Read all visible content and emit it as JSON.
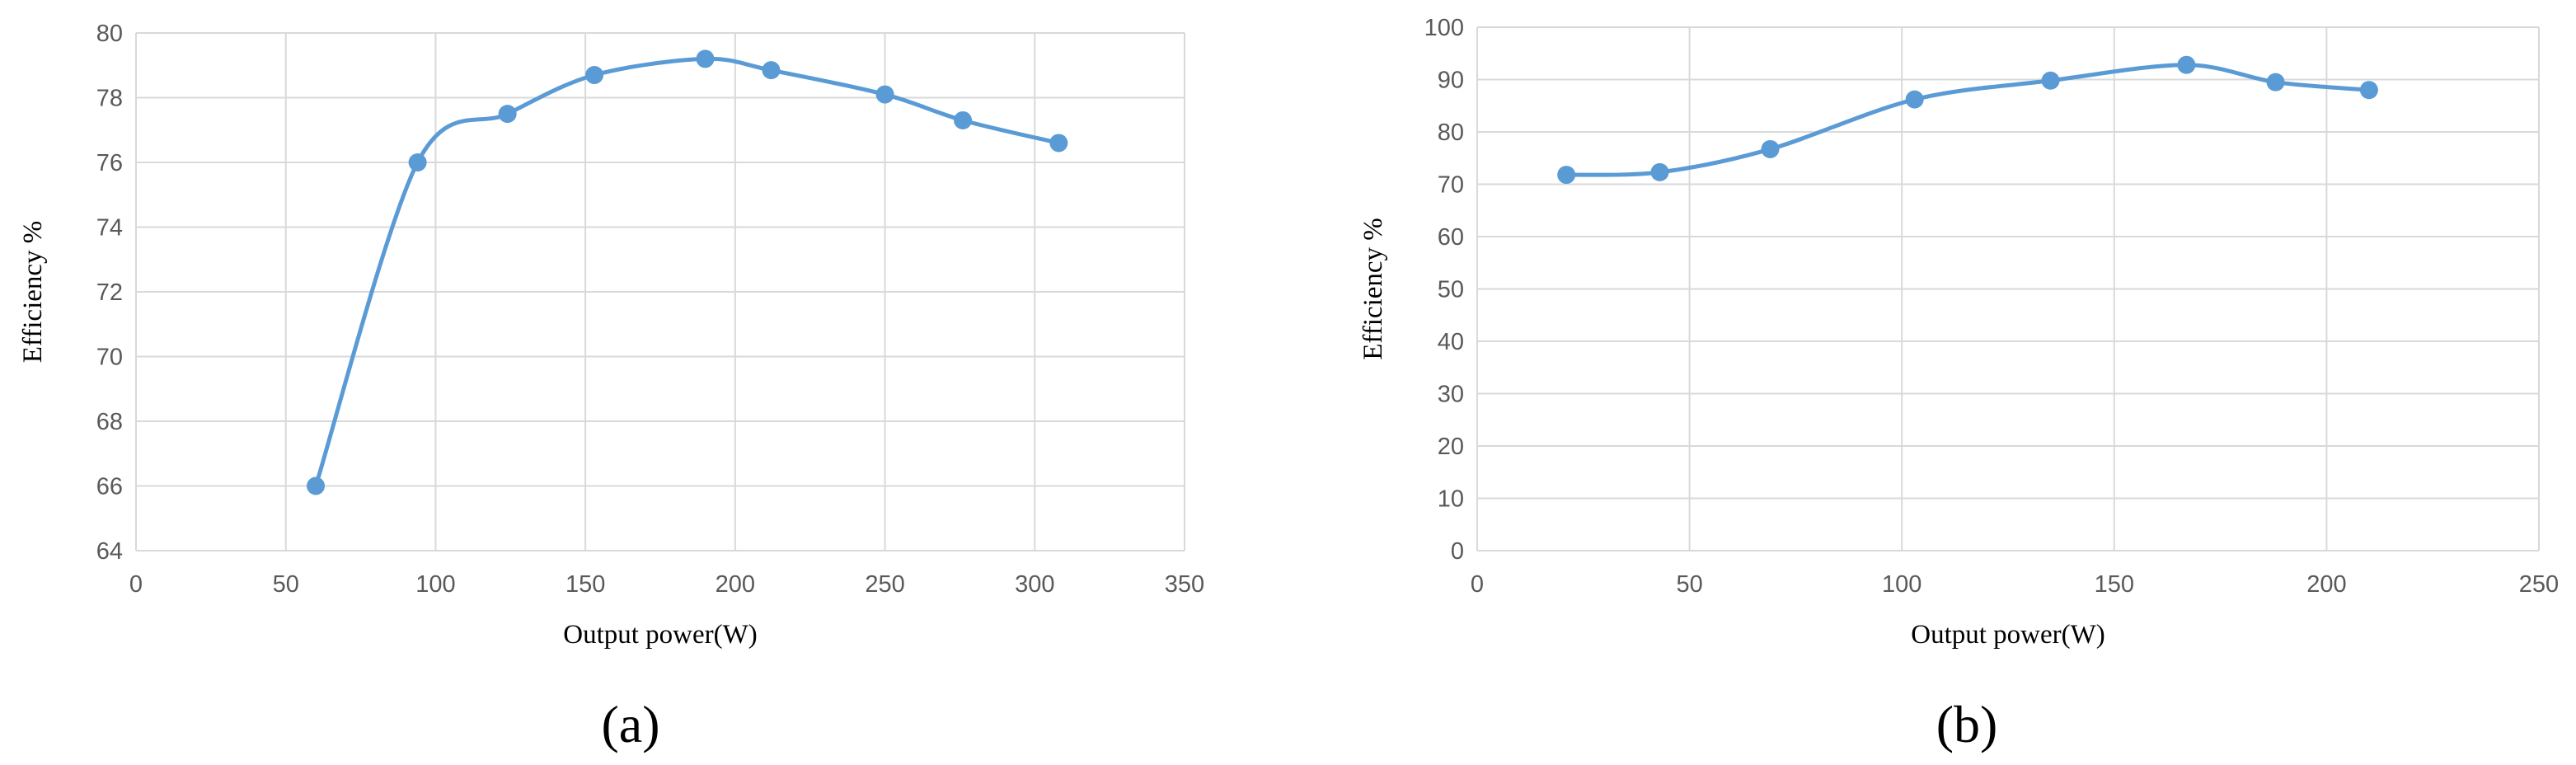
{
  "colors": {
    "series": "#5B9BD5",
    "grid": "#D9D9D9",
    "tick_text": "#595959"
  },
  "chart_data": [
    {
      "type": "line",
      "smooth": true,
      "markers": true,
      "panel_label": "(a)",
      "title": "",
      "xlabel": "Output power(W)",
      "ylabel": "Efficiency %",
      "xlim": [
        0,
        350
      ],
      "ylim": [
        64,
        80
      ],
      "xticks": [
        0,
        50,
        100,
        150,
        200,
        250,
        300,
        350
      ],
      "yticks": [
        64,
        66,
        68,
        70,
        72,
        74,
        76,
        78,
        80
      ],
      "grid": true,
      "legend": "none",
      "series": [
        {
          "x": [
            60,
            94,
            124,
            153,
            190,
            212,
            250,
            276,
            308
          ],
          "y": [
            66.0,
            76.0,
            77.5,
            78.7,
            79.2,
            78.85,
            78.1,
            77.3,
            76.6
          ]
        }
      ]
    },
    {
      "type": "line",
      "smooth": true,
      "markers": true,
      "panel_label": "(b)",
      "title": "",
      "xlabel": "Output power(W)",
      "ylabel": "Efficiency %",
      "xlim": [
        0,
        250
      ],
      "ylim": [
        0,
        100
      ],
      "xticks": [
        0,
        50,
        100,
        150,
        200,
        250
      ],
      "yticks": [
        0,
        10,
        20,
        30,
        40,
        50,
        60,
        70,
        80,
        90,
        100
      ],
      "grid": true,
      "legend": "none",
      "series": [
        {
          "x": [
            21,
            43,
            69,
            103,
            135,
            167,
            188,
            210
          ],
          "y": [
            71.8,
            72.3,
            76.7,
            86.2,
            89.8,
            92.8,
            89.5,
            88.0
          ]
        }
      ]
    }
  ]
}
